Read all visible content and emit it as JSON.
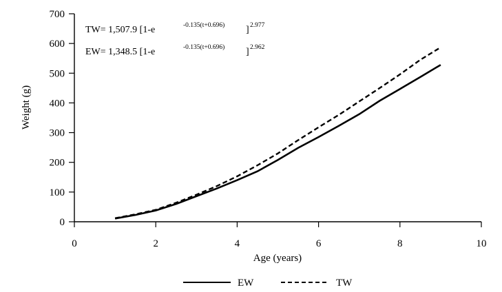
{
  "chart_data": {
    "type": "line",
    "xlabel": "Age (years)",
    "ylabel": "Weight (g)",
    "xlim": [
      0,
      10
    ],
    "ylim": [
      0,
      700
    ],
    "x_ticks": [
      0,
      2,
      4,
      6,
      8,
      10
    ],
    "y_ticks": [
      0,
      100,
      200,
      300,
      400,
      500,
      600,
      700
    ],
    "grid": false,
    "legend": {
      "placement": "bottom-center"
    },
    "series": [
      {
        "name": "EW",
        "style": "solid",
        "color": "#000000",
        "x": [
          1,
          1.5,
          2,
          2.5,
          3,
          3.5,
          4,
          4.5,
          5,
          5.5,
          6,
          6.5,
          7,
          7.5,
          8,
          8.5,
          9
        ],
        "y": [
          11,
          23,
          38,
          60,
          86,
          112,
          140,
          170,
          208,
          249,
          285,
          323,
          362,
          407,
          447,
          487,
          528
        ]
      },
      {
        "name": "TW",
        "style": "dashed",
        "color": "#000000",
        "x": [
          1,
          1.5,
          2,
          2.5,
          3,
          3.5,
          4,
          4.5,
          5,
          5.5,
          6,
          6.5,
          7,
          7.5,
          8,
          8.5,
          9
        ],
        "y": [
          12,
          25,
          40,
          64,
          91,
          120,
          153,
          190,
          230,
          275,
          318,
          360,
          405,
          450,
          496,
          545,
          587
        ]
      }
    ],
    "annotations": [
      {
        "label": "TW",
        "coef": "1,507.9",
        "exponent": "-0.135(t+0.696)",
        "power": "2.977"
      },
      {
        "label": "EW",
        "coef": "1,348.5",
        "exponent": "-0.135(t+0.696)",
        "power": "2.962"
      }
    ]
  }
}
